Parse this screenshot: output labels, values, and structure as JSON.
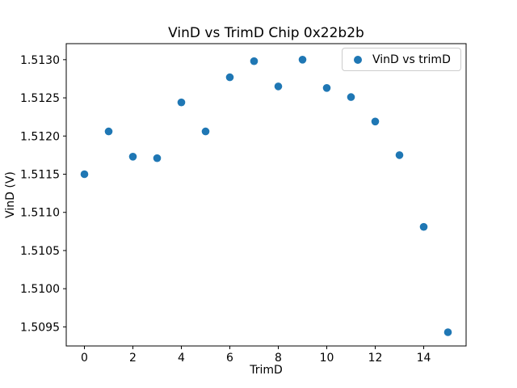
{
  "figure": {
    "background": "#ffffff",
    "text_color": "#000000",
    "spine_color": "#000000"
  },
  "chart_data": {
    "type": "scatter",
    "title": "VinD vs TrimD Chip 0x22b2b",
    "xlabel": "TrimD",
    "ylabel": "VinD (V)",
    "series": [
      {
        "name": "VinD vs trimD",
        "color": "#1f77b4",
        "x": [
          0,
          1,
          2,
          3,
          4,
          5,
          6,
          7,
          8,
          9,
          10,
          11,
          12,
          13,
          14,
          15
        ],
        "y": [
          1.5115,
          1.51206,
          1.51173,
          1.51171,
          1.51244,
          1.51206,
          1.51277,
          1.51298,
          1.51265,
          1.513,
          1.51263,
          1.51251,
          1.51219,
          1.51175,
          1.51081,
          1.50943
        ]
      }
    ],
    "x_ticks": [
      0,
      2,
      4,
      6,
      8,
      10,
      12,
      14
    ],
    "y_ticks": [
      1.5095,
      1.51,
      1.5105,
      1.511,
      1.5115,
      1.512,
      1.5125,
      1.513
    ],
    "xlim": [
      -0.75,
      15.75
    ],
    "ylim": [
      1.50925,
      1.51321
    ],
    "grid": false,
    "legend_position": "upper right",
    "marker_radius_px": 4.8,
    "tick_font_px": 14
  }
}
